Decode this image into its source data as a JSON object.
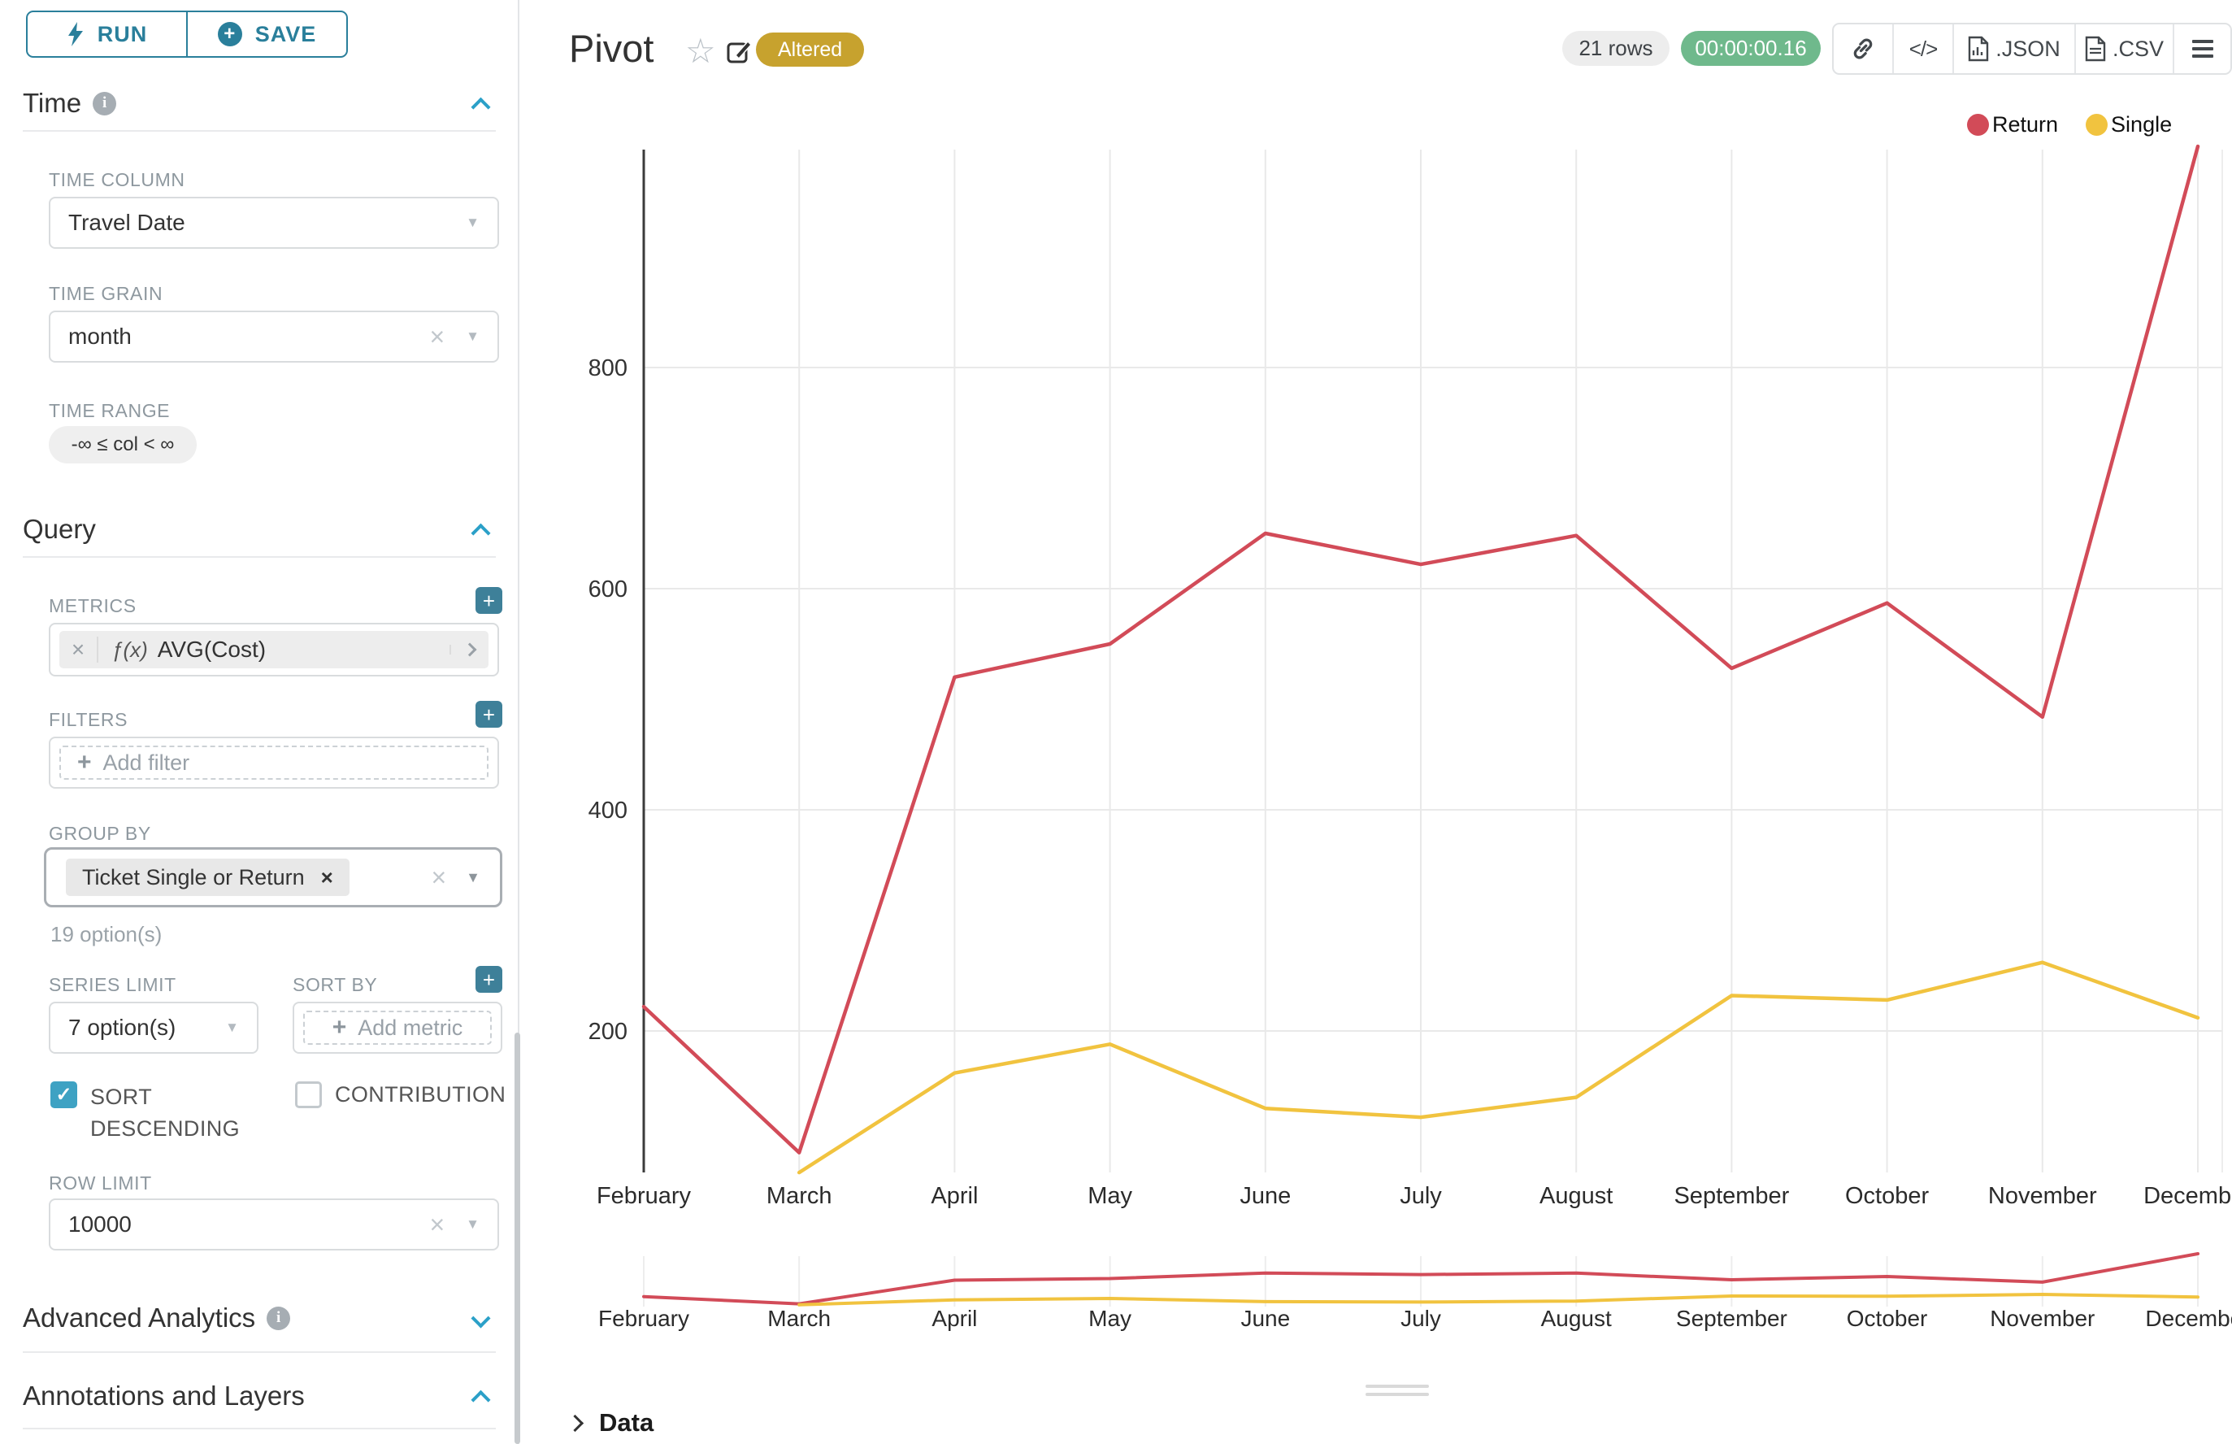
{
  "topbar": {
    "run_label": "RUN",
    "save_label": "SAVE"
  },
  "sidebar": {
    "time_section": "Time",
    "query_section": "Query",
    "advanced_section": "Advanced Analytics",
    "annotations_section": "Annotations and Layers",
    "time": {
      "time_column_label": "TIME COLUMN",
      "time_column_value": "Travel Date",
      "time_grain_label": "TIME GRAIN",
      "time_grain_value": "month",
      "time_range_label": "TIME RANGE",
      "time_range_value": "-∞ ≤ col < ∞"
    },
    "query": {
      "metrics_label": "METRICS",
      "metric_fx": "ƒ(x)",
      "metric_value": "AVG(Cost)",
      "filters_label": "FILTERS",
      "add_filter_label": "Add filter",
      "group_by_label": "GROUP BY",
      "group_by_tag": "Ticket Single or Return",
      "options_hint": "19 option(s)",
      "series_limit_label": "SERIES LIMIT",
      "series_limit_value": "7 option(s)",
      "sort_by_label": "SORT BY",
      "add_metric_label": "Add metric",
      "sort_descending_label": "SORT DESCENDING",
      "contribution_label": "CONTRIBUTION",
      "row_limit_label": "ROW LIMIT",
      "row_limit_value": "10000"
    }
  },
  "header": {
    "title": "Pivot",
    "altered_badge": "Altered",
    "rows_badge": "21 rows",
    "timer": "00:00:00.16",
    "json_label": ".JSON",
    "csv_label": ".CSV"
  },
  "data_panel": {
    "label": "Data"
  },
  "chart_data": {
    "type": "line",
    "title": "Pivot",
    "xlabel": "",
    "ylabel": "AVG(Cost)",
    "x": [
      "February",
      "March",
      "April",
      "May",
      "June",
      "July",
      "August",
      "September",
      "October",
      "November",
      "December"
    ],
    "series": [
      {
        "name": "Return",
        "color": "#d24b58",
        "values": [
          222,
          90,
          520,
          550,
          650,
          622,
          648,
          528,
          587,
          484,
          1000
        ]
      },
      {
        "name": "Single",
        "color": "#f1c33f",
        "values": [
          null,
          72,
          162,
          188,
          130,
          122,
          140,
          232,
          228,
          262,
          212
        ]
      }
    ],
    "yticks": [
      200,
      400,
      600,
      800
    ],
    "ylim": [
      70,
      1000
    ],
    "grid": true,
    "legend_position": "top-right",
    "has_preview_strip": true
  }
}
